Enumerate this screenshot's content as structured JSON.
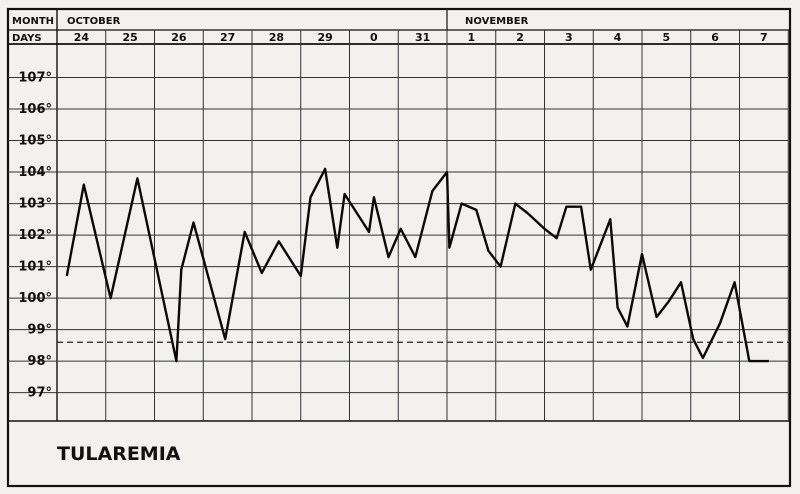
{
  "header": {
    "month_label": "MONTH",
    "days_label": "DAYS",
    "month1": "OCTOBER",
    "month2": "NOVEMBER"
  },
  "chart_data": {
    "type": "line",
    "title": "TULAREMIA",
    "x_categories": [
      "24",
      "25",
      "26",
      "27",
      "28",
      "29",
      "0",
      "31",
      "1",
      "2",
      "3",
      "4",
      "5",
      "6",
      "7"
    ],
    "y_ticks": [
      "107°",
      "106°",
      "105°",
      "104°",
      "103°",
      "102°",
      "101°",
      "100°",
      "99°",
      "98°",
      "97°"
    ],
    "ylim": [
      96.1,
      108
    ],
    "normal_line": 98.6,
    "grid": true,
    "series": [
      {
        "x": [
          -0.3,
          0.05,
          0.6,
          1.15,
          1.95,
          2.05,
          2.3,
          2.95,
          3.35,
          3.7,
          4.05,
          4.5,
          4.7,
          5.0,
          5.25,
          5.4,
          5.9,
          6.0,
          6.3,
          6.55,
          6.85,
          7.2,
          7.5,
          7.55,
          7.8,
          8.1,
          8.35,
          8.6,
          8.9,
          9.15,
          9.5,
          9.75,
          9.95,
          10.25,
          10.45,
          10.85,
          11.0,
          11.2,
          11.5,
          11.8,
          12.05,
          12.3,
          12.55,
          12.75,
          13.1,
          13.4,
          13.7,
          14.1
        ],
        "y": [
          100.7,
          103.6,
          100.0,
          103.8,
          98.0,
          100.9,
          102.4,
          98.7,
          102.1,
          100.8,
          101.8,
          100.7,
          103.2,
          104.1,
          101.6,
          103.3,
          102.1,
          103.2,
          101.3,
          102.2,
          101.3,
          103.4,
          104.0,
          101.6,
          103.0,
          102.8,
          101.5,
          101.0,
          103.0,
          102.7,
          102.2,
          101.9,
          102.9,
          102.9,
          100.9,
          102.5,
          99.7,
          99.1,
          101.4,
          99.4,
          99.9,
          100.5,
          98.7,
          98.1,
          99.2,
          100.5,
          98.0,
          98.0
        ]
      }
    ]
  }
}
